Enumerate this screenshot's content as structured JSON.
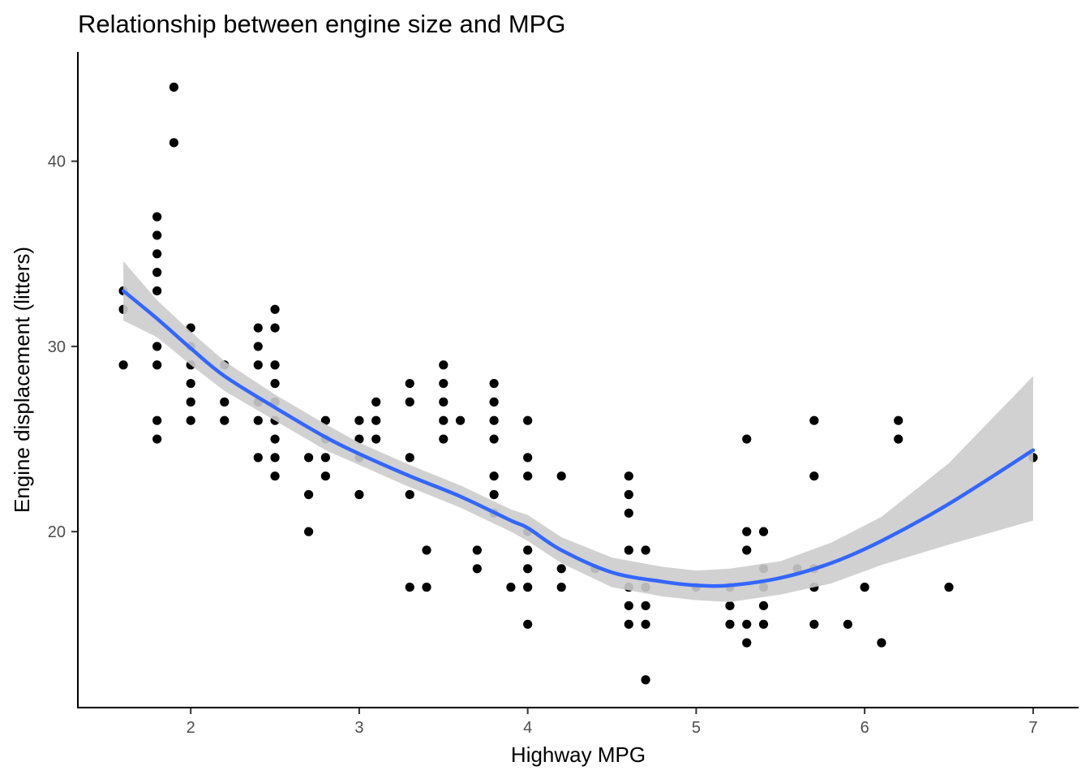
{
  "chart_data": {
    "type": "scatter",
    "title": "Relationship between engine size and MPG",
    "xlabel": "Highway MPG",
    "ylabel": "Engine displacement (litters)",
    "xlim": [
      1.33,
      7.27
    ],
    "ylim": [
      10.5,
      45.9
    ],
    "x_ticks": [
      2,
      3,
      4,
      5,
      6,
      7
    ],
    "y_ticks": [
      20,
      30,
      40
    ],
    "grid": false,
    "legend": "none",
    "colors": {
      "points": "#000000",
      "smooth_line": "#3366ff",
      "confidence_band": "#cccccc"
    },
    "points": [
      [
        1.6,
        33
      ],
      [
        1.6,
        32
      ],
      [
        1.6,
        29
      ],
      [
        1.8,
        37
      ],
      [
        1.8,
        36
      ],
      [
        1.8,
        35
      ],
      [
        1.8,
        34
      ],
      [
        1.8,
        33
      ],
      [
        1.8,
        30
      ],
      [
        1.8,
        29
      ],
      [
        1.8,
        26
      ],
      [
        1.8,
        25
      ],
      [
        1.9,
        44
      ],
      [
        1.9,
        41
      ],
      [
        2.0,
        31
      ],
      [
        2.0,
        30
      ],
      [
        2.0,
        29
      ],
      [
        2.0,
        28
      ],
      [
        2.0,
        27
      ],
      [
        2.0,
        26
      ],
      [
        2.2,
        29
      ],
      [
        2.2,
        27
      ],
      [
        2.2,
        26
      ],
      [
        2.4,
        31
      ],
      [
        2.4,
        30
      ],
      [
        2.4,
        29
      ],
      [
        2.4,
        27
      ],
      [
        2.4,
        26
      ],
      [
        2.4,
        24
      ],
      [
        2.5,
        32
      ],
      [
        2.5,
        31
      ],
      [
        2.5,
        29
      ],
      [
        2.5,
        28
      ],
      [
        2.5,
        27
      ],
      [
        2.5,
        26
      ],
      [
        2.5,
        25
      ],
      [
        2.5,
        24
      ],
      [
        2.5,
        23
      ],
      [
        2.7,
        24
      ],
      [
        2.7,
        22
      ],
      [
        2.7,
        20
      ],
      [
        2.8,
        26
      ],
      [
        2.8,
        25
      ],
      [
        2.8,
        24
      ],
      [
        2.8,
        23
      ],
      [
        3.0,
        26
      ],
      [
        3.0,
        25
      ],
      [
        3.0,
        24
      ],
      [
        3.0,
        22
      ],
      [
        3.1,
        27
      ],
      [
        3.1,
        26
      ],
      [
        3.1,
        25
      ],
      [
        3.3,
        28
      ],
      [
        3.3,
        27
      ],
      [
        3.3,
        24
      ],
      [
        3.3,
        22
      ],
      [
        3.3,
        17
      ],
      [
        3.4,
        19
      ],
      [
        3.4,
        17
      ],
      [
        3.5,
        29
      ],
      [
        3.5,
        28
      ],
      [
        3.5,
        27
      ],
      [
        3.5,
        26
      ],
      [
        3.5,
        25
      ],
      [
        3.6,
        26
      ],
      [
        3.7,
        19
      ],
      [
        3.7,
        18
      ],
      [
        3.8,
        28
      ],
      [
        3.8,
        27
      ],
      [
        3.8,
        26
      ],
      [
        3.8,
        25
      ],
      [
        3.8,
        23
      ],
      [
        3.8,
        22
      ],
      [
        3.8,
        21
      ],
      [
        3.9,
        17
      ],
      [
        4.0,
        26
      ],
      [
        4.0,
        24
      ],
      [
        4.0,
        23
      ],
      [
        4.0,
        20
      ],
      [
        4.0,
        19
      ],
      [
        4.0,
        18
      ],
      [
        4.0,
        17
      ],
      [
        4.0,
        15
      ],
      [
        4.2,
        23
      ],
      [
        4.2,
        18
      ],
      [
        4.2,
        17
      ],
      [
        4.4,
        18
      ],
      [
        4.6,
        23
      ],
      [
        4.6,
        22
      ],
      [
        4.6,
        21
      ],
      [
        4.6,
        19
      ],
      [
        4.6,
        17
      ],
      [
        4.6,
        16
      ],
      [
        4.6,
        15
      ],
      [
        4.7,
        19
      ],
      [
        4.7,
        17
      ],
      [
        4.7,
        16
      ],
      [
        4.7,
        15
      ],
      [
        4.7,
        12
      ],
      [
        5.0,
        17
      ],
      [
        5.2,
        17
      ],
      [
        5.2,
        16
      ],
      [
        5.2,
        15
      ],
      [
        5.3,
        25
      ],
      [
        5.3,
        20
      ],
      [
        5.3,
        19
      ],
      [
        5.3,
        15
      ],
      [
        5.3,
        14
      ],
      [
        5.4,
        20
      ],
      [
        5.4,
        18
      ],
      [
        5.4,
        17
      ],
      [
        5.4,
        16
      ],
      [
        5.4,
        15
      ],
      [
        5.6,
        18
      ],
      [
        5.7,
        26
      ],
      [
        5.7,
        23
      ],
      [
        5.7,
        18
      ],
      [
        5.7,
        17
      ],
      [
        5.7,
        15
      ],
      [
        5.9,
        15
      ],
      [
        6.0,
        17
      ],
      [
        6.1,
        14
      ],
      [
        6.2,
        26
      ],
      [
        6.2,
        25
      ],
      [
        6.5,
        17
      ],
      [
        7.0,
        24
      ]
    ],
    "smooth": {
      "method": "loess",
      "x": [
        1.6,
        1.8,
        2.0,
        2.2,
        2.5,
        2.8,
        3.0,
        3.3,
        3.6,
        3.9,
        4.0,
        4.2,
        4.5,
        4.8,
        5.0,
        5.2,
        5.5,
        5.8,
        6.1,
        6.5,
        7.0
      ],
      "y": [
        33.0,
        31.5,
        29.9,
        28.4,
        26.7,
        25.1,
        24.2,
        23.0,
        21.9,
        20.6,
        20.2,
        19.0,
        17.8,
        17.3,
        17.1,
        17.1,
        17.5,
        18.3,
        19.5,
        21.5,
        24.4
      ],
      "lower": [
        31.4,
        30.5,
        29.0,
        27.6,
        26.0,
        24.4,
        23.6,
        22.4,
        21.3,
        20.0,
        19.5,
        18.3,
        17.0,
        16.5,
        16.3,
        16.2,
        16.6,
        17.2,
        18.2,
        19.3,
        20.6
      ],
      "upper": [
        34.6,
        32.5,
        30.8,
        29.2,
        27.4,
        25.8,
        24.8,
        23.6,
        22.5,
        21.2,
        20.9,
        19.7,
        18.6,
        18.1,
        17.9,
        18.0,
        18.4,
        19.4,
        20.8,
        23.7,
        28.4
      ]
    }
  }
}
